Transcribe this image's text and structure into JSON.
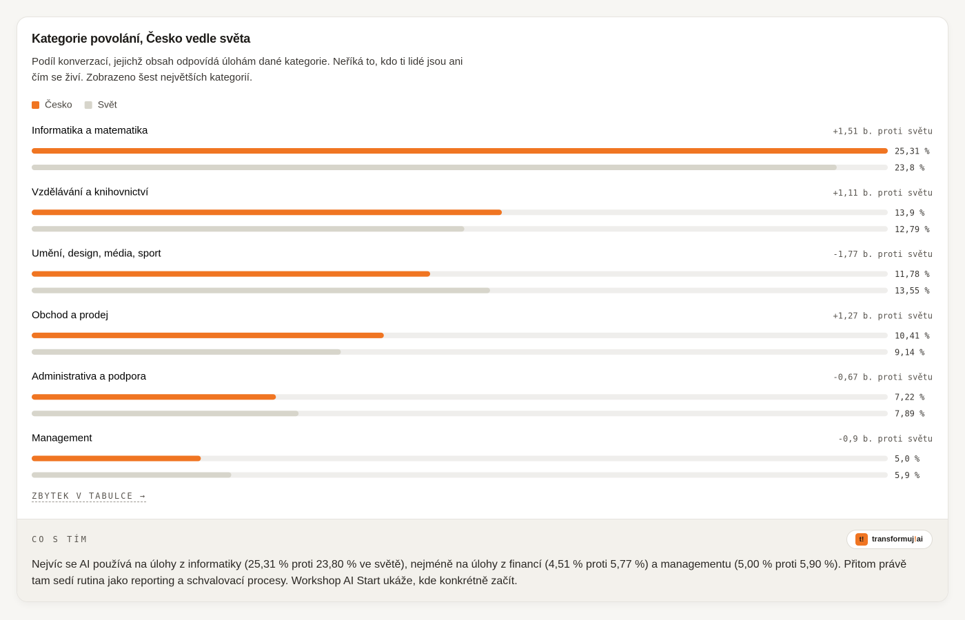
{
  "chart_data": {
    "type": "bar",
    "orientation": "horizontal",
    "title": "Kategorie povolání, Česko vedle světa",
    "subtitle": "Podíl konverzací, jejichž obsah odpovídá úlohám dané kategorie. Neříká to, kdo ti lidé jsou ani čím se živí. Zobrazeno šest největších kategorií.",
    "categories": [
      "Informatika a matematika",
      "Vzdělávání a knihovnictví",
      "Umění, design, média, sport",
      "Obchod a prodej",
      "Administrativa a podpora",
      "Management"
    ],
    "series": [
      {
        "name": "Česko",
        "color": "#f07522",
        "values": [
          25.31,
          13.9,
          11.78,
          10.41,
          7.22,
          5.0
        ],
        "value_labels": [
          "25,31 %",
          "13,9 %",
          "11,78 %",
          "10,41 %",
          "7,22 %",
          "5,0 %"
        ]
      },
      {
        "name": "Svět",
        "color": "#d7d5cb",
        "values": [
          23.8,
          12.79,
          13.55,
          9.14,
          7.89,
          5.9
        ],
        "value_labels": [
          "23,8 %",
          "12,79 %",
          "13,55 %",
          "9,14 %",
          "7,89 %",
          "5,9 %"
        ]
      }
    ],
    "annotations": [
      "+1,51 b. proti světu",
      "+1,11 b. proti světu",
      "-1,77 b. proti světu",
      "+1,27 b. proti světu",
      "-0,67 b. proti světu",
      "-0,9 b. proti světu"
    ],
    "xlim": [
      0,
      25.31
    ],
    "track_color": "#efeeec"
  },
  "link": "ZBYTEK V TABULCE →",
  "footer": {
    "heading": "CO S TÍM",
    "text": "Nejvíc se AI používá na úlohy z informatiky (25,31 % proti 23,80 % ve světě), nejméně na úlohy z financí (4,51 % proti 5,77 %) a managementu (5,00 % proti 5,90 %). Přitom právě tam sedí rutina jako reporting a schvalovací procesy. Workshop AI Start ukáže, kde konkrétně začít.",
    "logo": {
      "icon": "t!",
      "name": "transformuj",
      "mark": "!",
      "suffix": "ai"
    }
  }
}
